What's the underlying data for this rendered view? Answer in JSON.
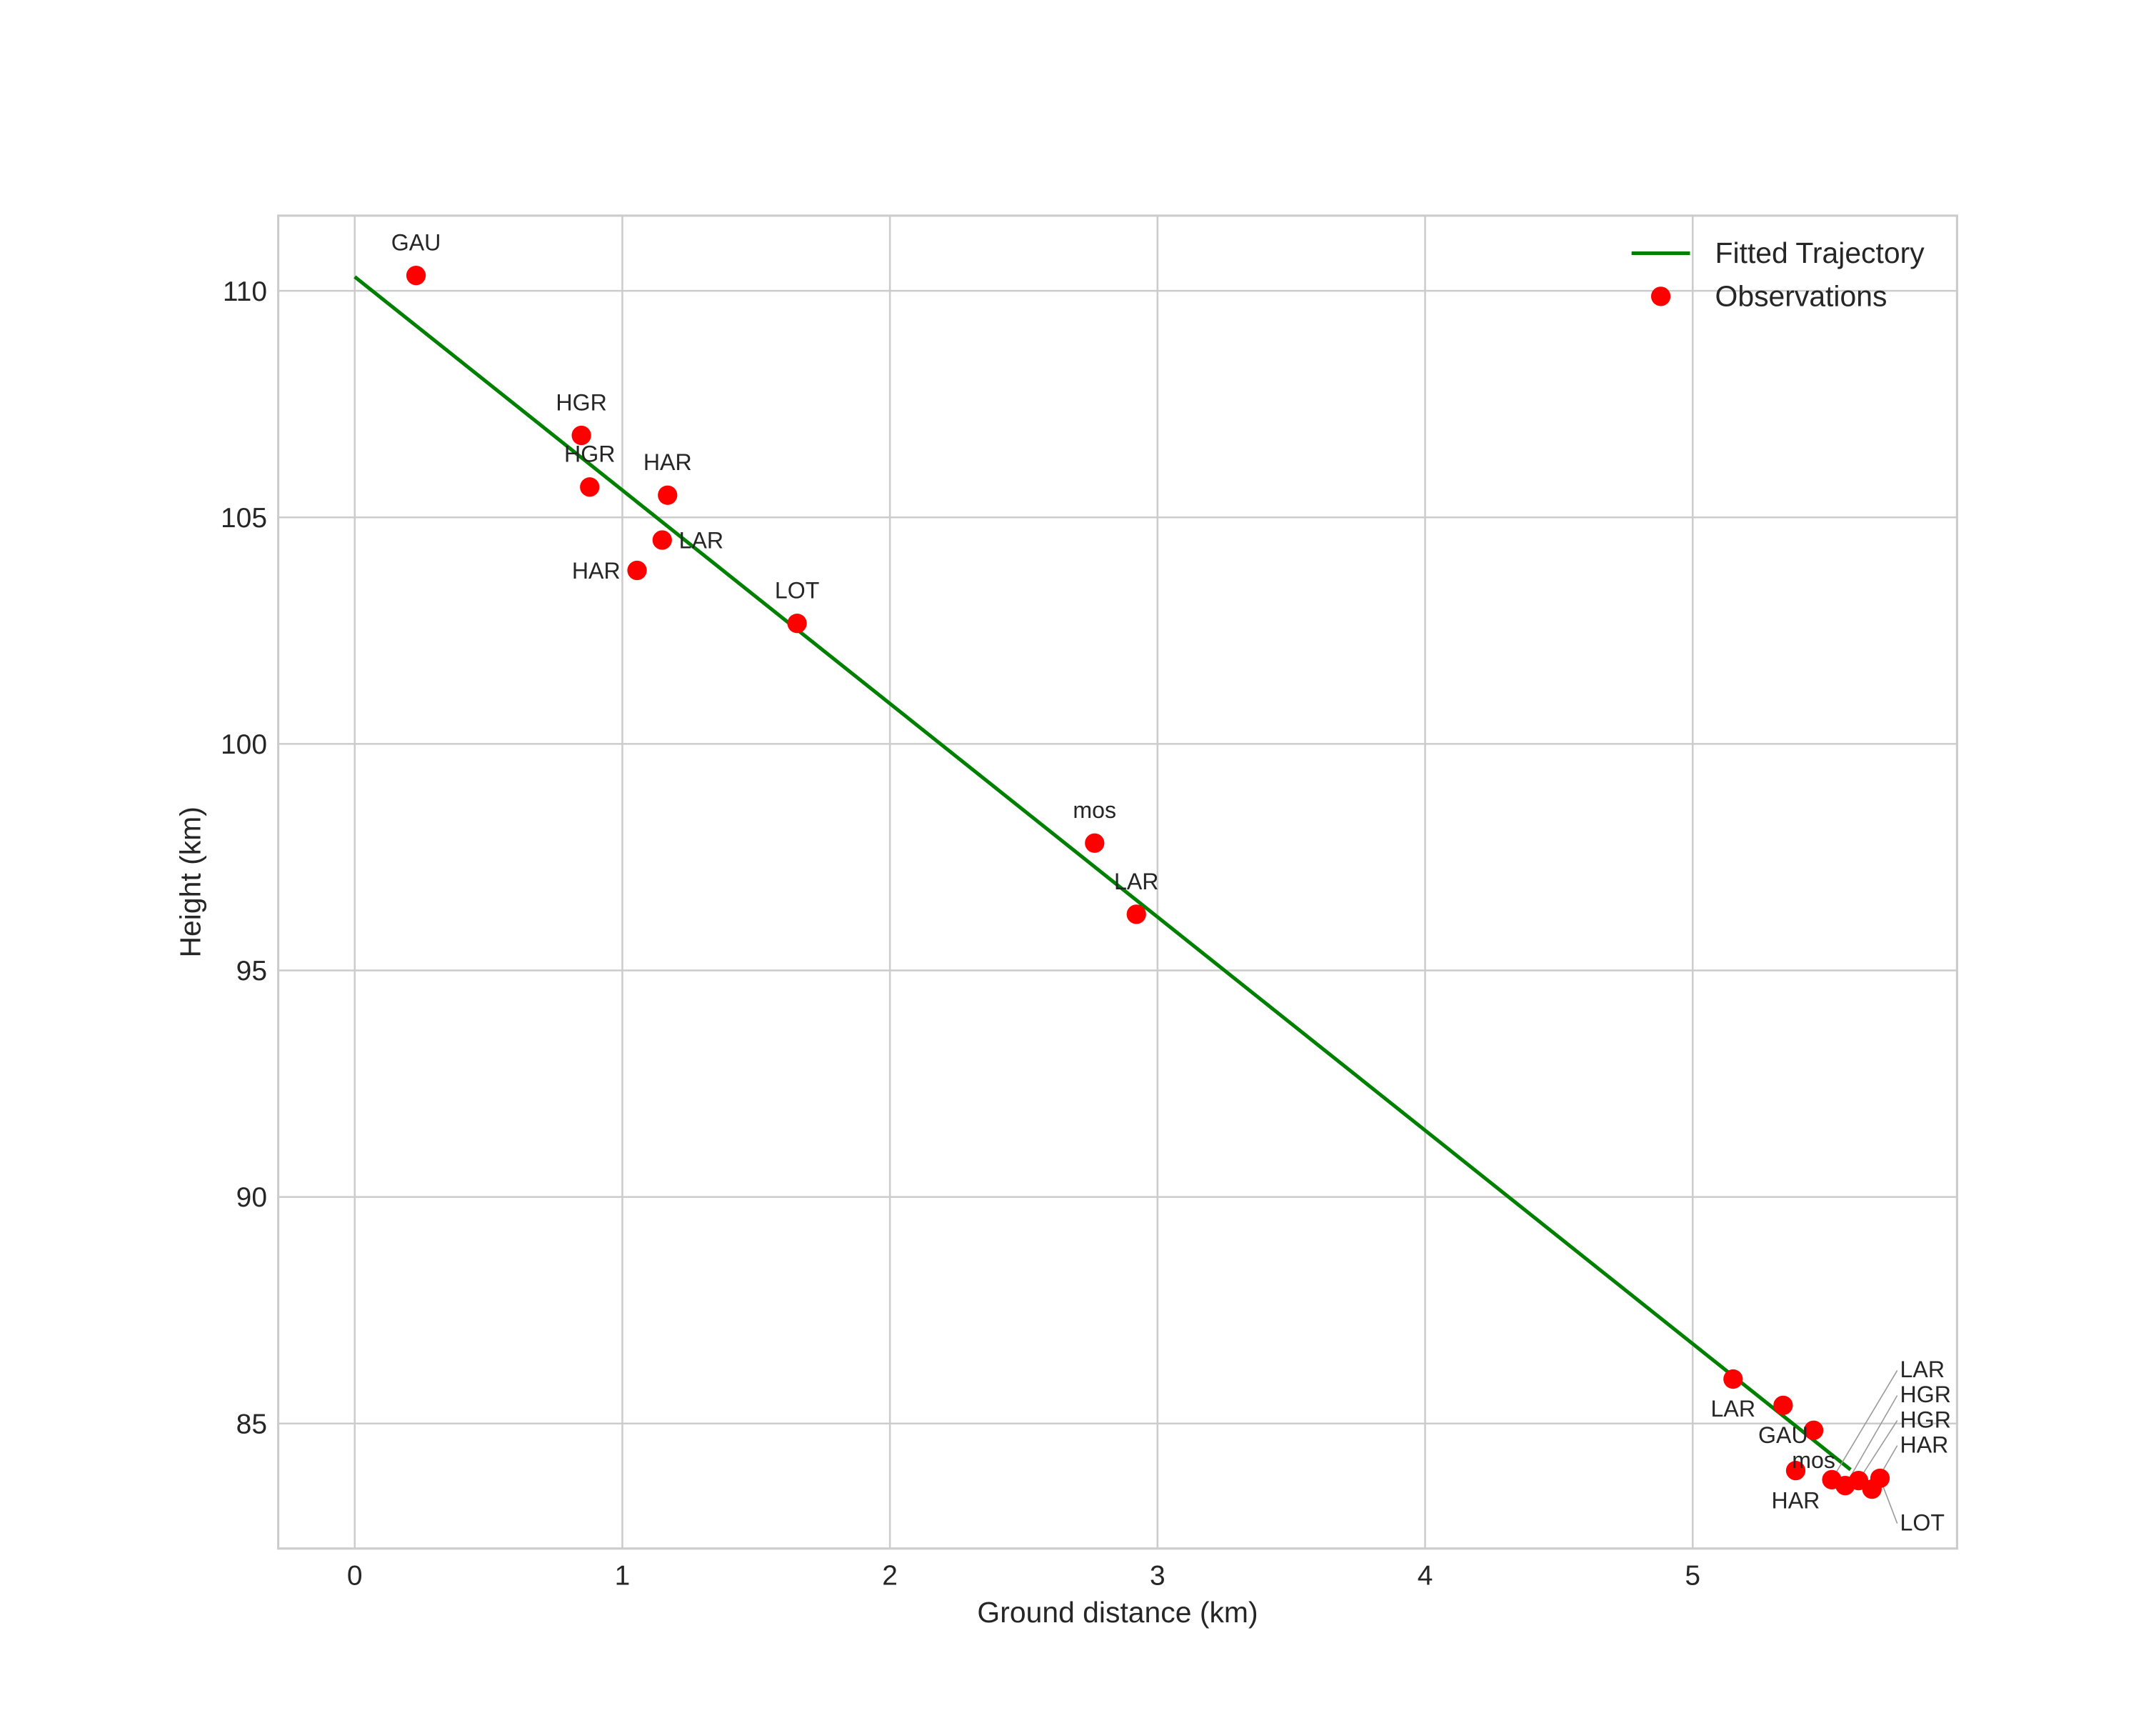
{
  "chart_data": {
    "type": "scatter",
    "title": "",
    "xlabel": "Ground distance (km)",
    "ylabel": "Height (km)",
    "xlim": [
      -0.286,
      5.988
    ],
    "ylim": [
      82.24,
      111.66
    ],
    "xticks": [
      0,
      1,
      2,
      3,
      4,
      5
    ],
    "yticks": [
      85,
      90,
      95,
      100,
      105,
      110
    ],
    "grid": true,
    "legend": {
      "placement": "top-right",
      "entries": [
        "Fitted Trajectory",
        "Observations"
      ]
    },
    "series": [
      {
        "name": "Fitted Trajectory",
        "type": "line",
        "color": "#008000",
        "x": [
          0.0,
          5.59
        ],
        "y": [
          110.31,
          83.98
        ]
      },
      {
        "name": "Observations",
        "type": "scatter",
        "color": "#ff0000",
        "points": [
          {
            "x": 0.229,
            "y": 110.34,
            "label": "GAU",
            "label_side": "above"
          },
          {
            "x": 0.847,
            "y": 106.81,
            "label": "HGR",
            "label_side": "above"
          },
          {
            "x": 0.878,
            "y": 105.67,
            "label": "HGR",
            "label_side": "above"
          },
          {
            "x": 1.169,
            "y": 105.49,
            "label": "HAR",
            "label_side": "above"
          },
          {
            "x": 1.149,
            "y": 104.5,
            "label": "LAR",
            "label_side": "above"
          },
          {
            "x": 1.055,
            "y": 103.83,
            "label": "HAR",
            "label_side": "above"
          },
          {
            "x": 1.653,
            "y": 102.66,
            "label": "LOT",
            "label_side": "above"
          },
          {
            "x": 2.765,
            "y": 97.81,
            "label": "mos",
            "label_side": "above"
          },
          {
            "x": 2.921,
            "y": 96.24,
            "label": "LAR",
            "label_side": "above"
          },
          {
            "x": 5.151,
            "y": 85.98,
            "label": "LAR",
            "label_side": "below"
          },
          {
            "x": 5.338,
            "y": 85.4,
            "label": "GAU",
            "label_side": "below"
          },
          {
            "x": 5.452,
            "y": 84.85,
            "label": "mos",
            "label_side": "below"
          },
          {
            "x": 5.385,
            "y": 83.96,
            "label": "HAR",
            "label_side": "below"
          },
          {
            "x": 5.52,
            "y": 83.76,
            "label": "LAR",
            "label_side": "below"
          },
          {
            "x": 5.57,
            "y": 83.63,
            "label": "HGR",
            "label_side": "below"
          },
          {
            "x": 5.62,
            "y": 83.74,
            "label": "HGR",
            "label_side": "below"
          },
          {
            "x": 5.67,
            "y": 83.55,
            "label": "HAR",
            "label_side": "below"
          },
          {
            "x": 5.7,
            "y": 83.79,
            "label": "LOT",
            "label_side": "below"
          }
        ]
      }
    ]
  }
}
